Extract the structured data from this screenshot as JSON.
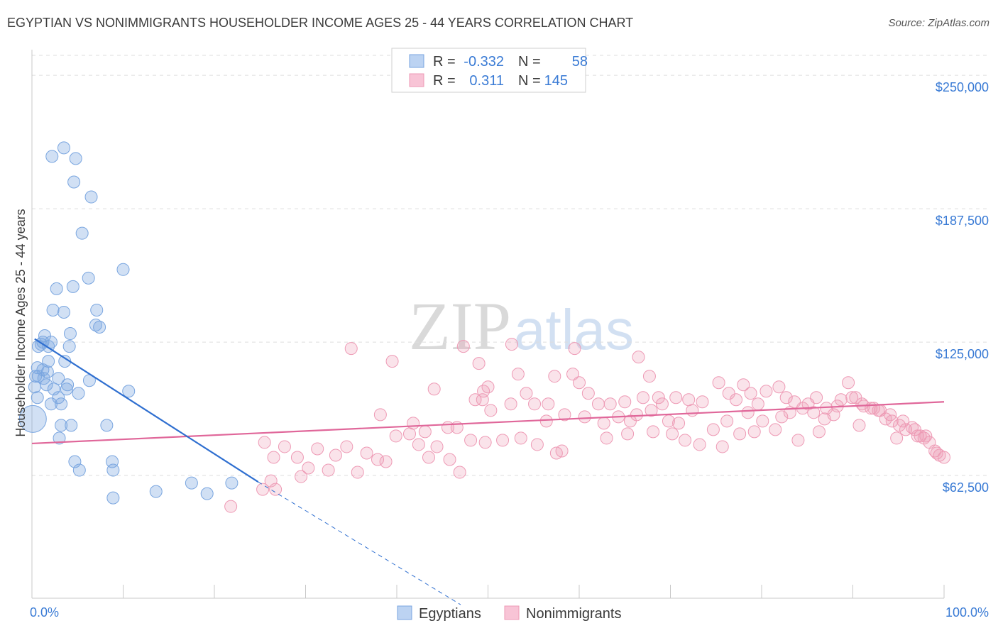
{
  "title": "EGYPTIAN VS NONIMMIGRANTS HOUSEHOLDER INCOME AGES 25 - 44 YEARS CORRELATION CHART",
  "source": "Source: ZipAtlas.com",
  "watermark_zip": "ZIP",
  "watermark_atlas": "atlas",
  "colors": {
    "blue": "#7aa6e0",
    "blue_line": "#2f6fd0",
    "pink": "#ee9ab5",
    "pink_line": "#e0679a",
    "tick": "#3a7bd5"
  },
  "legend": {
    "r_label": "R =",
    "n_label": "N =",
    "rows": [
      {
        "r": "-0.332",
        "n": "58"
      },
      {
        "r": "0.311",
        "n": "145"
      }
    ]
  },
  "chart_data": {
    "type": "scatter",
    "title": "EGYPTIAN VS NONIMMIGRANTS HOUSEHOLDER INCOME AGES 25 - 44 YEARS CORRELATION CHART",
    "xlabel": "",
    "ylabel": "Householder Income Ages 25 - 44 years",
    "xlim": [
      0,
      100
    ],
    "ylim": [
      5000,
      262000
    ],
    "x_tick_labels": [
      "0.0%",
      "100.0%"
    ],
    "y_ticks": [
      62500,
      125000,
      187500,
      250000
    ],
    "y_tick_labels": [
      "$62,500",
      "$125,000",
      "$187,500",
      "$250,000"
    ],
    "series": [
      {
        "name": "Egyptians",
        "r": -0.332,
        "n": 58,
        "trend": {
          "x0": 0.3,
          "y0": 126500,
          "x1": 24.8,
          "y1": 59500,
          "dash_to_x": 47.0,
          "dash_to_y": 2000
        },
        "points": [
          [
            3.5,
            216000
          ],
          [
            4.8,
            211000
          ],
          [
            4.6,
            200000
          ],
          [
            6.5,
            193000
          ],
          [
            5.5,
            176000
          ],
          [
            10.0,
            159000
          ],
          [
            6.2,
            155000
          ],
          [
            2.7,
            150000
          ],
          [
            4.5,
            151000
          ],
          [
            2.3,
            140000
          ],
          [
            3.5,
            139000
          ],
          [
            7.0,
            133000
          ],
          [
            7.4,
            132000
          ],
          [
            1.4,
            128000
          ],
          [
            4.2,
            129000
          ],
          [
            1.2,
            125000
          ],
          [
            2.1,
            125000
          ],
          [
            1.8,
            123000
          ],
          [
            1.0,
            124000
          ],
          [
            4.1,
            123000
          ],
          [
            0.7,
            123000
          ],
          [
            1.8,
            116000
          ],
          [
            0.6,
            113000
          ],
          [
            1.2,
            112000
          ],
          [
            1.7,
            111000
          ],
          [
            0.4,
            109000
          ],
          [
            0.7,
            109000
          ],
          [
            1.3,
            108000
          ],
          [
            2.9,
            108000
          ],
          [
            6.3,
            107000
          ],
          [
            0.3,
            104000
          ],
          [
            1.6,
            105000
          ],
          [
            2.4,
            103000
          ],
          [
            3.9,
            105000
          ],
          [
            3.8,
            103000
          ],
          [
            10.6,
            102000
          ],
          [
            0.6,
            99000
          ],
          [
            2.9,
            99000
          ],
          [
            2.1,
            96000
          ],
          [
            3.2,
            96000
          ],
          [
            0.1,
            89000
          ],
          [
            3.2,
            86000
          ],
          [
            4.3,
            86000
          ],
          [
            8.2,
            86000
          ],
          [
            3.0,
            80000
          ],
          [
            4.7,
            69000
          ],
          [
            8.8,
            69000
          ],
          [
            5.2,
            65000
          ],
          [
            8.9,
            65000
          ],
          [
            17.5,
            59000
          ],
          [
            21.9,
            59000
          ],
          [
            13.6,
            55000
          ],
          [
            19.2,
            54000
          ],
          [
            8.9,
            52000
          ],
          [
            2.2,
            212000
          ],
          [
            3.6,
            116000
          ],
          [
            7.1,
            140000
          ],
          [
            5.1,
            101000
          ]
        ]
      },
      {
        "name": "Nonimmigrants",
        "r": 0.311,
        "n": 145,
        "trend": {
          "x0": 0,
          "y0": 77500,
          "x1": 100,
          "y1": 97000
        },
        "points": [
          [
            35.0,
            122000
          ],
          [
            52.6,
            124000
          ],
          [
            59.5,
            122000
          ],
          [
            47.3,
            123000
          ],
          [
            39.5,
            116000
          ],
          [
            66.5,
            118000
          ],
          [
            59.3,
            110000
          ],
          [
            49.0,
            115000
          ],
          [
            53.3,
            110000
          ],
          [
            57.3,
            109000
          ],
          [
            67.7,
            109000
          ],
          [
            60.0,
            106000
          ],
          [
            44.1,
            103000
          ],
          [
            50.0,
            104000
          ],
          [
            54.2,
            101000
          ],
          [
            61.0,
            101000
          ],
          [
            49.5,
            102000
          ],
          [
            49.4,
            98000
          ],
          [
            48.6,
            98000
          ],
          [
            55.1,
            96000
          ],
          [
            56.6,
            96000
          ],
          [
            62.1,
            96000
          ],
          [
            63.4,
            96000
          ],
          [
            65.0,
            97000
          ],
          [
            67.0,
            99000
          ],
          [
            68.7,
            99000
          ],
          [
            69.1,
            96000
          ],
          [
            70.6,
            99000
          ],
          [
            72.0,
            98000
          ],
          [
            72.4,
            93000
          ],
          [
            73.5,
            97000
          ],
          [
            75.3,
            106000
          ],
          [
            76.4,
            101000
          ],
          [
            77.2,
            98000
          ],
          [
            78.0,
            105000
          ],
          [
            78.8,
            101000
          ],
          [
            79.6,
            96000
          ],
          [
            80.5,
            102000
          ],
          [
            81.9,
            104000
          ],
          [
            82.7,
            99000
          ],
          [
            83.6,
            97000
          ],
          [
            84.5,
            94000
          ],
          [
            85.1,
            96000
          ],
          [
            86.0,
            99000
          ],
          [
            87.1,
            94000
          ],
          [
            87.9,
            91000
          ],
          [
            88.7,
            98000
          ],
          [
            89.5,
            106000
          ],
          [
            90.3,
            99000
          ],
          [
            91.2,
            95000
          ],
          [
            92.0,
            94000
          ],
          [
            92.8,
            93000
          ],
          [
            93.6,
            89000
          ],
          [
            94.3,
            88000
          ],
          [
            95.1,
            86000
          ],
          [
            95.8,
            84000
          ],
          [
            96.5,
            85000
          ],
          [
            97.1,
            81000
          ],
          [
            97.8,
            80000
          ],
          [
            98.4,
            78000
          ],
          [
            99.0,
            74000
          ],
          [
            99.5,
            72000
          ],
          [
            100.0,
            71000
          ],
          [
            50.3,
            93000
          ],
          [
            52.5,
            96000
          ],
          [
            56.4,
            88000
          ],
          [
            58.4,
            91000
          ],
          [
            60.6,
            90000
          ],
          [
            62.7,
            87000
          ],
          [
            64.3,
            90000
          ],
          [
            65.6,
            88000
          ],
          [
            66.3,
            91000
          ],
          [
            67.9,
            93000
          ],
          [
            69.8,
            88000
          ],
          [
            70.9,
            87000
          ],
          [
            74.7,
            84000
          ],
          [
            76.2,
            88000
          ],
          [
            78.5,
            92000
          ],
          [
            80.1,
            88000
          ],
          [
            82.2,
            90000
          ],
          [
            83.1,
            92000
          ],
          [
            85.7,
            92000
          ],
          [
            86.9,
            89000
          ],
          [
            88.3,
            95000
          ],
          [
            89.9,
            99000
          ],
          [
            91.0,
            96000
          ],
          [
            92.3,
            94000
          ],
          [
            93.0,
            93000
          ],
          [
            94.1,
            91000
          ],
          [
            95.5,
            88000
          ],
          [
            96.8,
            84000
          ],
          [
            98.0,
            81000
          ],
          [
            99.2,
            73000
          ],
          [
            38.2,
            91000
          ],
          [
            41.8,
            87000
          ],
          [
            43.1,
            83000
          ],
          [
            45.6,
            85000
          ],
          [
            46.6,
            85000
          ],
          [
            49.7,
            78000
          ],
          [
            51.6,
            79000
          ],
          [
            53.6,
            80000
          ],
          [
            55.4,
            77000
          ],
          [
            57.5,
            73000
          ],
          [
            58.1,
            74000
          ],
          [
            63.0,
            80000
          ],
          [
            65.3,
            82000
          ],
          [
            68.1,
            83000
          ],
          [
            70.2,
            82000
          ],
          [
            71.6,
            79000
          ],
          [
            73.2,
            77000
          ],
          [
            75.7,
            76000
          ],
          [
            77.6,
            82000
          ],
          [
            79.2,
            83000
          ],
          [
            81.5,
            84000
          ],
          [
            84.0,
            79000
          ],
          [
            86.3,
            83000
          ],
          [
            90.7,
            86000
          ],
          [
            94.8,
            80000
          ],
          [
            97.4,
            81000
          ],
          [
            25.5,
            78000
          ],
          [
            26.5,
            71000
          ],
          [
            27.7,
            76000
          ],
          [
            29.1,
            71000
          ],
          [
            30.3,
            66000
          ],
          [
            31.3,
            75000
          ],
          [
            32.5,
            65000
          ],
          [
            33.3,
            72000
          ],
          [
            34.5,
            76000
          ],
          [
            35.7,
            64000
          ],
          [
            36.7,
            73000
          ],
          [
            37.9,
            70000
          ],
          [
            38.8,
            69000
          ],
          [
            39.9,
            81000
          ],
          [
            41.4,
            82000
          ],
          [
            42.4,
            77000
          ],
          [
            43.5,
            71000
          ],
          [
            44.4,
            76000
          ],
          [
            45.8,
            70000
          ],
          [
            46.9,
            64000
          ],
          [
            48.1,
            79000
          ],
          [
            29.5,
            62000
          ],
          [
            26.2,
            60000
          ],
          [
            25.3,
            56000
          ],
          [
            26.7,
            56000
          ],
          [
            21.8,
            48000
          ]
        ]
      }
    ]
  },
  "bottom_legend": [
    "Egyptians",
    "Nonimmigrants"
  ]
}
